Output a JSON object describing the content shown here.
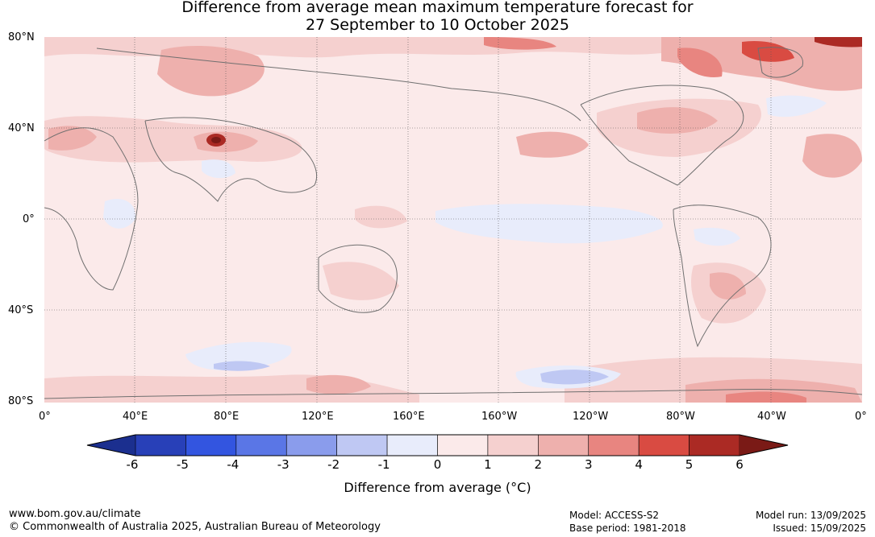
{
  "title": {
    "line1": "Difference from average mean maximum temperature forecast for",
    "line2": "27 September to 10 October 2025"
  },
  "lat_labels": [
    "80°N",
    "40°N",
    "0°",
    "40°S",
    "80°S"
  ],
  "lon_labels": [
    "0°",
    "40°E",
    "80°E",
    "120°E",
    "160°E",
    "160°W",
    "120°W",
    "80°W",
    "40°W",
    "0°"
  ],
  "colorbar": {
    "ticks": [
      "-6",
      "-5",
      "-4",
      "-3",
      "-2",
      "-1",
      "0",
      "1",
      "2",
      "3",
      "4",
      "5",
      "6"
    ],
    "colors": [
      "#1b2f8f",
      "#2840b8",
      "#3355e0",
      "#5a76e6",
      "#8a9cec",
      "#bfc8f3",
      "#e8ecfb",
      "#fbeaea",
      "#f5d0cf",
      "#eeb0ad",
      "#e88580",
      "#d94b42",
      "#ab2a24",
      "#7a1a16"
    ],
    "title": "Difference from average (°C)"
  },
  "footer": {
    "url": "www.bom.gov.au/climate",
    "copyright": "© Commonwealth of Australia 2025, Australian Bureau of Meteorology",
    "model": "Model: ACCESS-S2",
    "base_period": "Base period: 1981-2018",
    "model_run": "Model run: 13/09/2025",
    "issued": "Issued: 15/09/2025"
  }
}
